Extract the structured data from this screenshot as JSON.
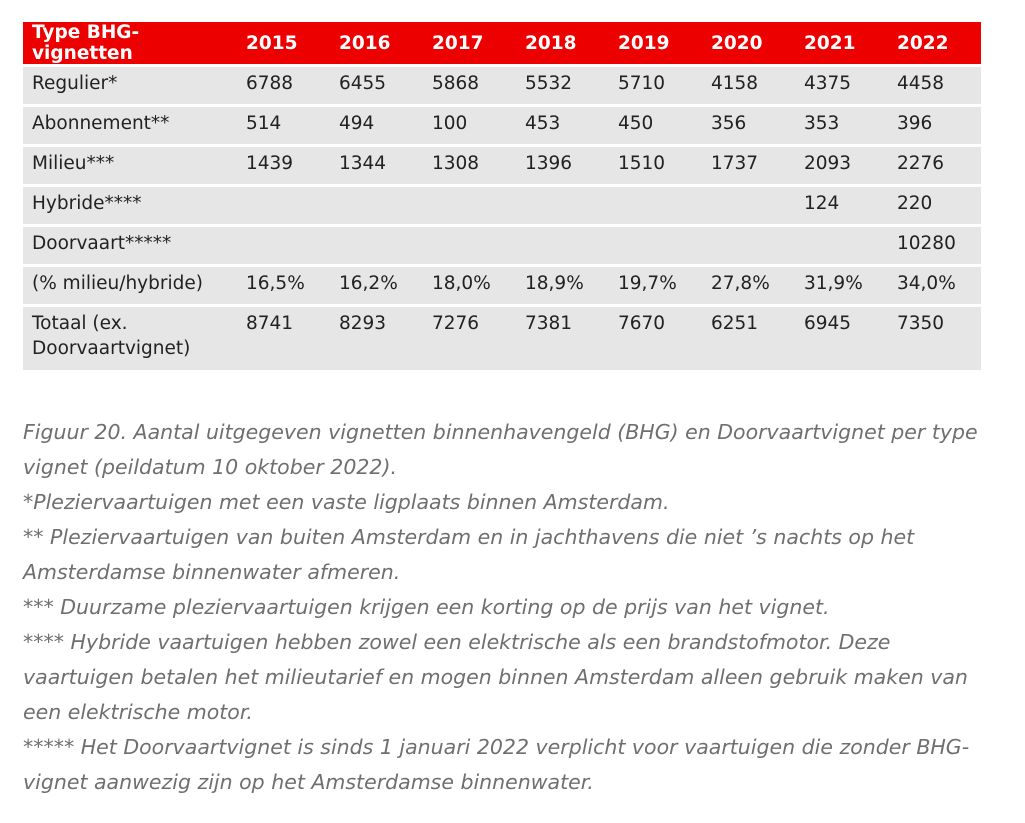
{
  "table": {
    "headers": [
      "Type BHG-vignetten",
      "2015",
      "2016",
      "2017",
      "2018",
      "2019",
      "2020",
      "2021",
      "2022"
    ],
    "rows": [
      [
        "Regulier*",
        "6788",
        "6455",
        "5868",
        "5532",
        "5710",
        "4158",
        "4375",
        "4458"
      ],
      [
        "Abonnement**",
        "514",
        "494",
        "100",
        "453",
        "450",
        "356",
        "353",
        "396"
      ],
      [
        "Milieu***",
        "1439",
        "1344",
        "1308",
        "1396",
        "1510",
        "1737",
        "2093",
        "2276"
      ],
      [
        "Hybride****",
        "",
        "",
        "",
        "",
        "",
        "",
        "124",
        "220"
      ],
      [
        "Doorvaart*****",
        "",
        "",
        "",
        "",
        "",
        "",
        "",
        "10280"
      ],
      [
        "(% milieu/hybride)",
        "16,5%",
        "16,2%",
        "18,0%",
        "18,9%",
        "19,7%",
        "27,8%",
        "31,9%",
        "34,0%"
      ],
      [
        "Totaal (ex. Doorvaartvignet)",
        "8741",
        "8293",
        "7276",
        "7381",
        "7670",
        "6251",
        "6945",
        "7350"
      ]
    ]
  },
  "caption": {
    "lines": [
      "Figuur 20. Aantal uitgegeven vignetten binnenhavengeld (BHG) en Doorvaartvignet per type vignet (peildatum 10 oktober 2022).",
      "*Pleziervaartuigen met een vaste ligplaats binnen Amsterdam.",
      "** Pleziervaartuigen van buiten Amsterdam en in jachthavens die niet ’s nachts op het Amsterdamse binnenwater afmeren.",
      "*** Duurzame pleziervaartuigen krijgen een korting op de prijs van het vignet.",
      "**** Hybride vaartuigen hebben zowel een elektrische als een brandstofmotor. Deze vaartuigen betalen het milieutarief en mogen binnen Amsterdam alleen gebruik maken van een elektrische motor.",
      "***** Het Doorvaartvignet is sinds 1 januari 2022 verplicht voor vaartuigen die zonder BHG-vignet aanwezig zijn op het Amsterdamse binnenwater."
    ]
  },
  "colors": {
    "header_bg": "#ec0000",
    "header_text": "#ffffff",
    "row_bg": "#e6e6e6",
    "caption_text": "#6f6f6f"
  }
}
